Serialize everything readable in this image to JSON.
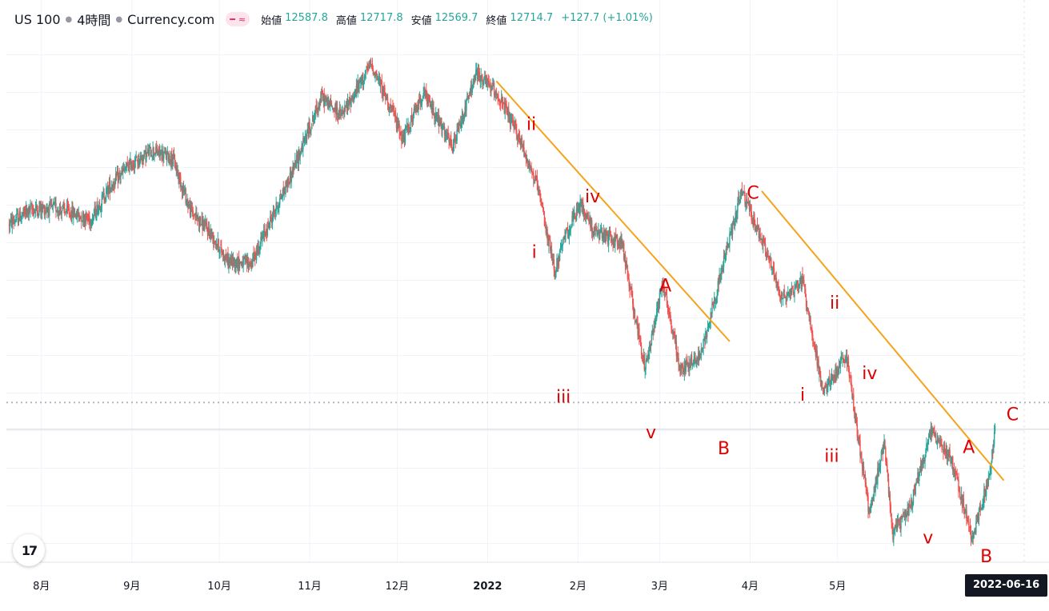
{
  "header": {
    "symbol": "US 100",
    "interval": "4時間",
    "source": "Currency.com",
    "open_label": "始値",
    "open_value": "12587.8",
    "high_label": "高値",
    "high_value": "12717.8",
    "low_label": "安値",
    "low_value": "12569.7",
    "close_label": "終値",
    "close_value": "12714.7",
    "change": "+127.7 (+1.01%)"
  },
  "date_badge": "2022-06-16",
  "logo_text": "17",
  "colors": {
    "up": "#26a69a",
    "down": "#ef5350",
    "trendline": "#f7a21b",
    "wave_label": "#e00000",
    "grid": "#f0f3fa",
    "axis_text": "#131722"
  },
  "chart_data": {
    "type": "candlestick",
    "instrument": "US 100",
    "timeframe": "4時間",
    "x_axis": {
      "tick_labels": [
        "8月",
        "9月",
        "10月",
        "11月",
        "12月",
        "2022",
        "2月",
        "3月",
        "4月",
        "5月"
      ],
      "tick_dates": [
        "2021-08-01",
        "2021-09-01",
        "2021-10-01",
        "2021-11-01",
        "2021-12-01",
        "2022-01-01",
        "2022-02-01",
        "2022-03-01",
        "2022-04-01",
        "2022-05-01"
      ],
      "range": [
        "2021-07-20",
        "2022-07-04"
      ]
    },
    "y_axis": {
      "range": [
        11300,
        16900
      ],
      "grid": true,
      "tick_labels_visible": false
    },
    "price_path": [
      [
        "2021-07-21",
        14900
      ],
      [
        "2021-07-28",
        15050
      ],
      [
        "2021-08-06",
        15070
      ],
      [
        "2021-08-18",
        14950
      ],
      [
        "2021-08-24",
        15280
      ],
      [
        "2021-08-31",
        15520
      ],
      [
        "2021-09-08",
        15680
      ],
      [
        "2021-09-15",
        15600
      ],
      [
        "2021-09-21",
        15050
      ],
      [
        "2021-09-28",
        14800
      ],
      [
        "2021-10-04",
        14500
      ],
      [
        "2021-10-12",
        14480
      ],
      [
        "2021-10-18",
        14900
      ],
      [
        "2021-10-26",
        15450
      ],
      [
        "2021-11-05",
        16250
      ],
      [
        "2021-11-12",
        16050
      ],
      [
        "2021-11-22",
        16600
      ],
      [
        "2021-11-30",
        16050
      ],
      [
        "2021-12-03",
        15800
      ],
      [
        "2021-12-10",
        16300
      ],
      [
        "2021-12-20",
        15700
      ],
      [
        "2021-12-28",
        16500
      ],
      [
        "2022-01-04",
        16300
      ],
      [
        "2022-01-12",
        15800
      ],
      [
        "2022-01-18",
        15300
      ],
      [
        "2022-01-24",
        14400
      ],
      [
        "2022-01-28",
        14800
      ],
      [
        "2022-02-02",
        15100
      ],
      [
        "2022-02-07",
        14800
      ],
      [
        "2022-02-16",
        14700
      ],
      [
        "2022-02-24",
        13350
      ],
      [
        "2022-03-02",
        14300
      ],
      [
        "2022-03-08",
        13350
      ],
      [
        "2022-03-15",
        13500
      ],
      [
        "2022-03-29",
        15250
      ],
      [
        "2022-04-06",
        14650
      ],
      [
        "2022-04-12",
        14100
      ],
      [
        "2022-04-19",
        14300
      ],
      [
        "2022-04-26",
        13100
      ],
      [
        "2022-05-04",
        13500
      ],
      [
        "2022-05-12",
        11800
      ],
      [
        "2022-05-17",
        12600
      ],
      [
        "2022-05-20",
        11600
      ],
      [
        "2022-05-26",
        11900
      ],
      [
        "2022-06-02",
        12700
      ],
      [
        "2022-06-09",
        12400
      ],
      [
        "2022-06-16",
        11550
      ],
      [
        "2022-06-22",
        12200
      ],
      [
        "2022-06-24",
        12714.7
      ]
    ],
    "trendlines": [
      {
        "from": [
          "2022-01-04",
          16420
        ],
        "to": [
          "2022-03-25",
          13650
        ]
      },
      {
        "from": [
          "2022-04-05",
          15250
        ],
        "to": [
          "2022-06-27",
          12170
        ]
      }
    ],
    "wave_labels": [
      {
        "text": "ii",
        "at": [
          "2022-01-16",
          15900
        ]
      },
      {
        "text": "i",
        "at": [
          "2022-01-17",
          14540
        ]
      },
      {
        "text": "iv",
        "at": [
          "2022-02-06",
          15130
        ]
      },
      {
        "text": "iii",
        "at": [
          "2022-01-27",
          13000
        ]
      },
      {
        "text": "A",
        "at": [
          "2022-03-03",
          14180
        ]
      },
      {
        "text": "v",
        "at": [
          "2022-02-26",
          12620
        ]
      },
      {
        "text": "B",
        "at": [
          "2022-03-23",
          12450
        ]
      },
      {
        "text": "C",
        "at": [
          "2022-04-02",
          15170
        ]
      },
      {
        "text": "ii",
        "at": [
          "2022-04-30",
          14000
        ]
      },
      {
        "text": "i",
        "at": [
          "2022-04-19",
          13020
        ]
      },
      {
        "text": "iv",
        "at": [
          "2022-05-12",
          13250
        ]
      },
      {
        "text": "iii",
        "at": [
          "2022-04-29",
          12370
        ]
      },
      {
        "text": "A",
        "at": [
          "2022-06-15",
          12460
        ]
      },
      {
        "text": "v",
        "at": [
          "2022-06-01",
          11500
        ]
      },
      {
        "text": "B",
        "at": [
          "2022-06-21",
          11300
        ]
      },
      {
        "text": "C",
        "at": [
          "2022-06-30",
          12810
        ]
      }
    ],
    "horizontal_lines": [
      {
        "price": 13000,
        "style": "dotted"
      },
      {
        "price": 12714.7,
        "style": "solid"
      }
    ],
    "last_date": "2022-06-16"
  }
}
